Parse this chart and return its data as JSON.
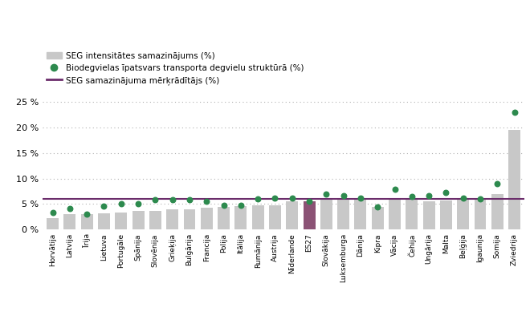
{
  "categories": [
    "Horvātija",
    "Latvija",
    "Īrija",
    "Lietuva",
    "Portugāle",
    "Spānija",
    "Slovēnija",
    "Grieķija",
    "Bulgārija",
    "Francija",
    "Polija",
    "Itālija",
    "Rumānija",
    "Austrija",
    "Nīderlande",
    "ES27",
    "Slovākija",
    "Luksemburga",
    "Dānija",
    "Kipra",
    "Vācija",
    "Čehija",
    "Ungārija",
    "Malta",
    "Beļģija",
    "Igaunija",
    "Somija",
    "Zviedrija"
  ],
  "bar_values": [
    2.2,
    3.0,
    3.1,
    3.2,
    3.4,
    3.7,
    3.7,
    3.9,
    4.0,
    4.3,
    4.5,
    4.6,
    4.7,
    4.8,
    5.5,
    5.6,
    6.1,
    6.2,
    6.0,
    4.4,
    5.9,
    5.8,
    5.6,
    5.7,
    6.2,
    5.8,
    7.0,
    19.5
  ],
  "dot_values": [
    3.3,
    4.1,
    3.1,
    4.6,
    5.0,
    5.1,
    5.8,
    5.8,
    5.9,
    5.5,
    4.8,
    4.8,
    6.0,
    6.1,
    6.2,
    5.6,
    7.0,
    6.6,
    6.1,
    4.4,
    7.9,
    6.5,
    6.6,
    7.3,
    6.1,
    6.0,
    9.0,
    23.0
  ],
  "es27_index": 15,
  "bar_color_default": "#c8c8c8",
  "bar_color_es27": "#8b5275",
  "dot_color": "#2d8a4e",
  "line_value": 6.0,
  "line_color": "#6b2d6b",
  "ylim": [
    0,
    27
  ],
  "yticks": [
    0,
    5,
    10,
    15,
    20,
    25
  ],
  "ytick_labels": [
    "0 %",
    "5 %",
    "10 %",
    "15 %",
    "20 %",
    "25 %"
  ],
  "legend_bar_label": "SEG intensitātes samazinājums (%)",
  "legend_dot_label": "Biodegvielas īpatsvars transporta degvielu struktūrā (%)",
  "legend_line_label": "SEG samazinājuma mērķrādītājs (%)",
  "background_color": "#ffffff",
  "grid_color": "#b0b0b0",
  "figsize": [
    6.6,
    4.09
  ],
  "dpi": 100
}
